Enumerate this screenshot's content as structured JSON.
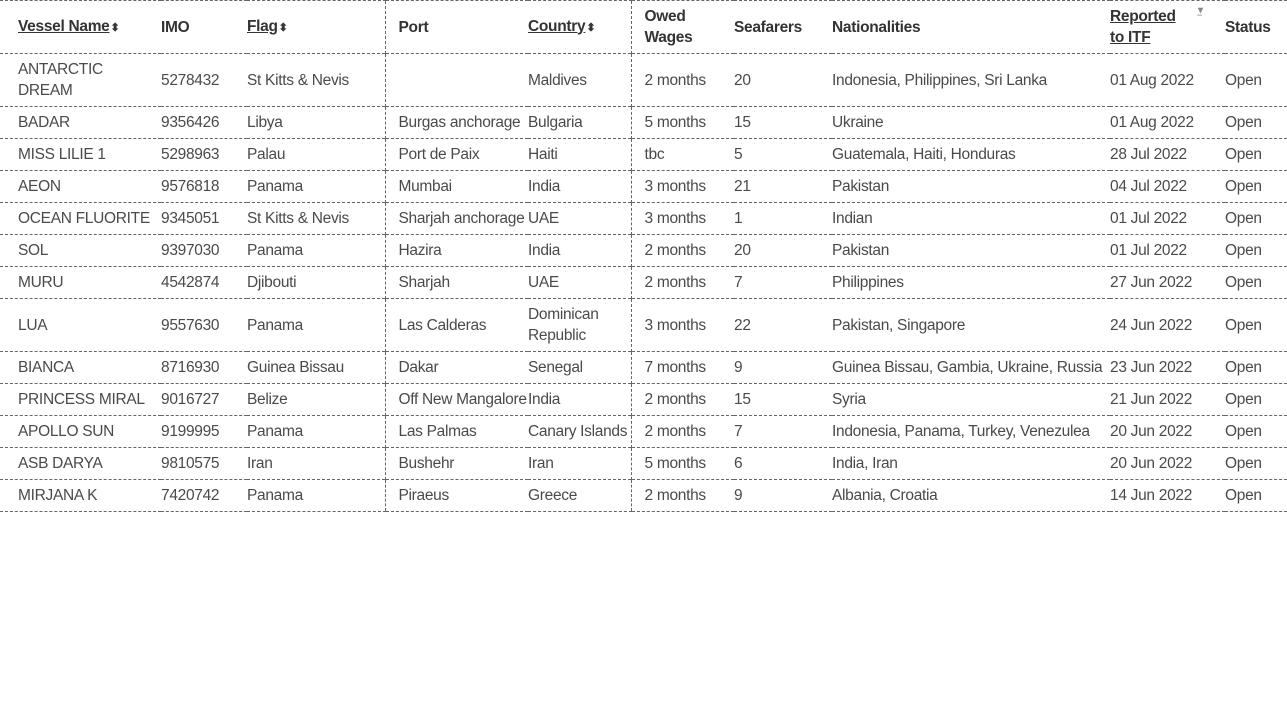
{
  "table": {
    "headers": [
      {
        "label": "Vessel Name",
        "sortable": true
      },
      {
        "label": "IMO",
        "sortable": false
      },
      {
        "label": "Flag",
        "sortable": true
      },
      {
        "label": "Port",
        "sortable": false
      },
      {
        "label": "Country",
        "sortable": true
      },
      {
        "label": "Owed Wages",
        "sortable": false
      },
      {
        "label": "Seafarers",
        "sortable": false
      },
      {
        "label": "Nationalities",
        "sortable": false
      },
      {
        "label": "Reported to ITF",
        "sortable": true,
        "sorted": "descending"
      },
      {
        "label": "Status",
        "sortable": false
      }
    ],
    "rows": [
      [
        "ANTARCTIC DREAM",
        "5278432",
        "St Kitts & Nevis",
        "",
        "Maldives",
        "2 months",
        "20",
        "Indonesia, Philippines, Sri Lanka",
        "01 Aug 2022",
        "Open"
      ],
      [
        "BADAR",
        "9356426",
        "Libya",
        "Burgas anchorage",
        "Bulgaria",
        "5 months",
        "15",
        "Ukraine",
        "01 Aug 2022",
        "Open"
      ],
      [
        "MISS LILIE 1",
        "5298963",
        "Palau",
        "Port de Paix",
        "Haiti",
        "tbc",
        "5",
        "Guatemala, Haiti, Honduras",
        "28 Jul 2022",
        "Open"
      ],
      [
        "AEON",
        "9576818",
        "Panama",
        "Mumbai",
        "India",
        "3 months",
        "21",
        "Pakistan",
        "04 Jul 2022",
        "Open"
      ],
      [
        "OCEAN FLUORITE",
        "9345051",
        "St Kitts & Nevis",
        "Sharjah anchorage",
        "UAE",
        "3 months",
        "1",
        "Indian",
        "01 Jul 2022",
        "Open"
      ],
      [
        "SOL",
        "9397030",
        "Panama",
        "Hazira",
        "India",
        "2 months",
        "20",
        "Pakistan",
        "01 Jul 2022",
        "Open"
      ],
      [
        "MURU",
        "4542874",
        "Djibouti",
        "Sharjah",
        "UAE",
        "2 months",
        "7",
        "Philippines",
        "27 Jun 2022",
        "Open"
      ],
      [
        "LUA",
        "9557630",
        "Panama",
        "Las Calderas",
        "Dominican Republic",
        "3 months",
        "22",
        "Pakistan, Singapore",
        "24 Jun 2022",
        "Open"
      ],
      [
        "BIANCA",
        "8716930",
        "Guinea Bissau",
        "Dakar",
        "Senegal",
        "7 months",
        "9",
        "Guinea Bissau, Gambia, Ukraine, Russia",
        "23 Jun 2022",
        "Open"
      ],
      [
        "PRINCESS MIRAL",
        "9016727",
        "Belize",
        "Off New Mangalore",
        "India",
        "2 months",
        "15",
        "Syria",
        "21 Jun 2022",
        "Open"
      ],
      [
        "APOLLO SUN",
        "9199995",
        "Panama",
        "Las Palmas",
        "Canary Islands",
        "2 months",
        "7",
        "Indonesia, Panama, Turkey, Venezulea",
        "20 Jun 2022",
        "Open"
      ],
      [
        "ASB DARYA",
        "9810575",
        "Iran",
        "Bushehr",
        "Iran",
        "5 months",
        "6",
        "India, Iran",
        "20 Jun 2022",
        "Open"
      ],
      [
        "MIRJANA K",
        "7420742",
        "Panama",
        "Piraeus",
        "Greece",
        "2 months",
        "9",
        "Albania, Croatia",
        "14 Jun 2022",
        "Open"
      ]
    ]
  }
}
